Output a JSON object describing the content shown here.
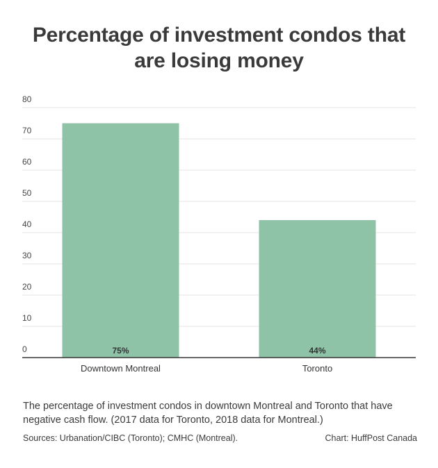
{
  "title_line1": "Percentage of investment condos that",
  "title_line2": "are losing money",
  "chart_data": {
    "type": "bar",
    "title": "Percentage of investment condos that are losing money",
    "categories": [
      "Downtown Montreal",
      "Toronto"
    ],
    "values": [
      75,
      44
    ],
    "data_labels": [
      "75%",
      "44%"
    ],
    "ylim": [
      0,
      80
    ],
    "yticks": [
      "0",
      "10",
      "20",
      "30",
      "40",
      "50",
      "60",
      "70",
      "80"
    ],
    "xlabel": "",
    "ylabel": "",
    "grid": true,
    "bar_color": "#8ec3a8"
  },
  "caption": "The percentage of investment condos in downtown Montreal and Toronto that have negative cash flow. (2017 data for Toronto, 2018 data for Montreal.)",
  "sources": "Sources: Urbanation/CIBC (Toronto); CMHC (Montreal).",
  "credit": "Chart: HuffPost Canada"
}
